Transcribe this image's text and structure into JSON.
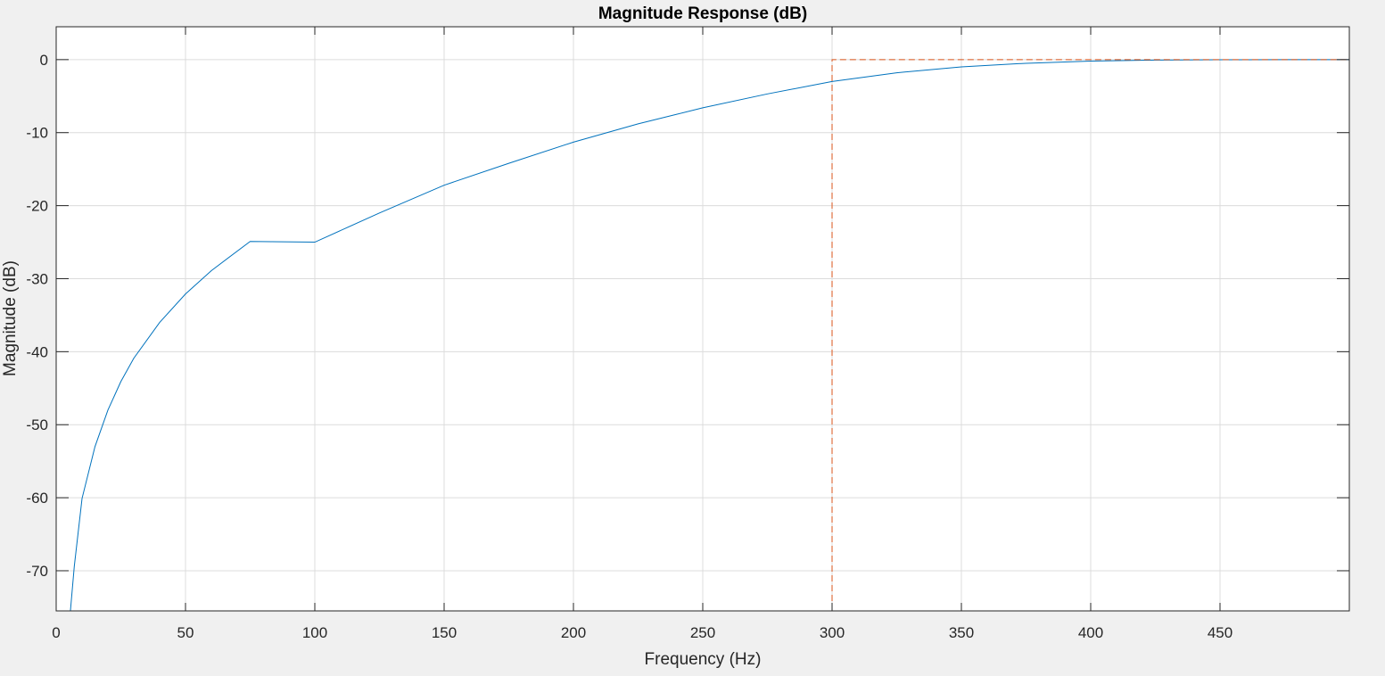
{
  "chart_data": {
    "type": "line",
    "title": "Magnitude Response (dB)",
    "xlabel": "Frequency (Hz)",
    "ylabel": "Magnitude (dB)",
    "xlim": [
      0,
      500
    ],
    "ylim": [
      -75.5,
      4.5
    ],
    "xticks": [
      0,
      50,
      100,
      150,
      200,
      250,
      300,
      350,
      400,
      450
    ],
    "xtick_labels": [
      "0",
      "50",
      "100",
      "150",
      "200",
      "250",
      "300",
      "350",
      "400",
      "450"
    ],
    "yticks": [
      0,
      -10,
      -20,
      -30,
      -40,
      -50,
      -60,
      -70
    ],
    "ytick_labels": [
      "0",
      "-10",
      "-20",
      "-30",
      "-40",
      "-50",
      "-60",
      "-70"
    ],
    "grid": true,
    "series": [
      {
        "style": "solid",
        "color": "#0072bd",
        "x": [
          5.5,
          7,
          10,
          15,
          20,
          25,
          30,
          40,
          50,
          60,
          75,
          100,
          125,
          150,
          175,
          200,
          225,
          250,
          275,
          300,
          325,
          350,
          375,
          400,
          425,
          450,
          475,
          500
        ],
        "y": [
          -75.5,
          -69.4,
          -60.1,
          -53.0,
          -48.0,
          -44.1,
          -40.9,
          -36.0,
          -32.1,
          -28.9,
          -24.9,
          -25.0,
          -21.0,
          -17.2,
          -14.2,
          -11.3,
          -8.8,
          -6.6,
          -4.7,
          -3.0,
          -1.8,
          -1.0,
          -0.5,
          -0.2,
          -0.06,
          -0.02,
          -0.005,
          0.0
        ]
      },
      {
        "style": "dashed",
        "color": "#d95319",
        "x": [
          300,
          300,
          500
        ],
        "y": [
          -75.5,
          0,
          0
        ]
      }
    ]
  }
}
